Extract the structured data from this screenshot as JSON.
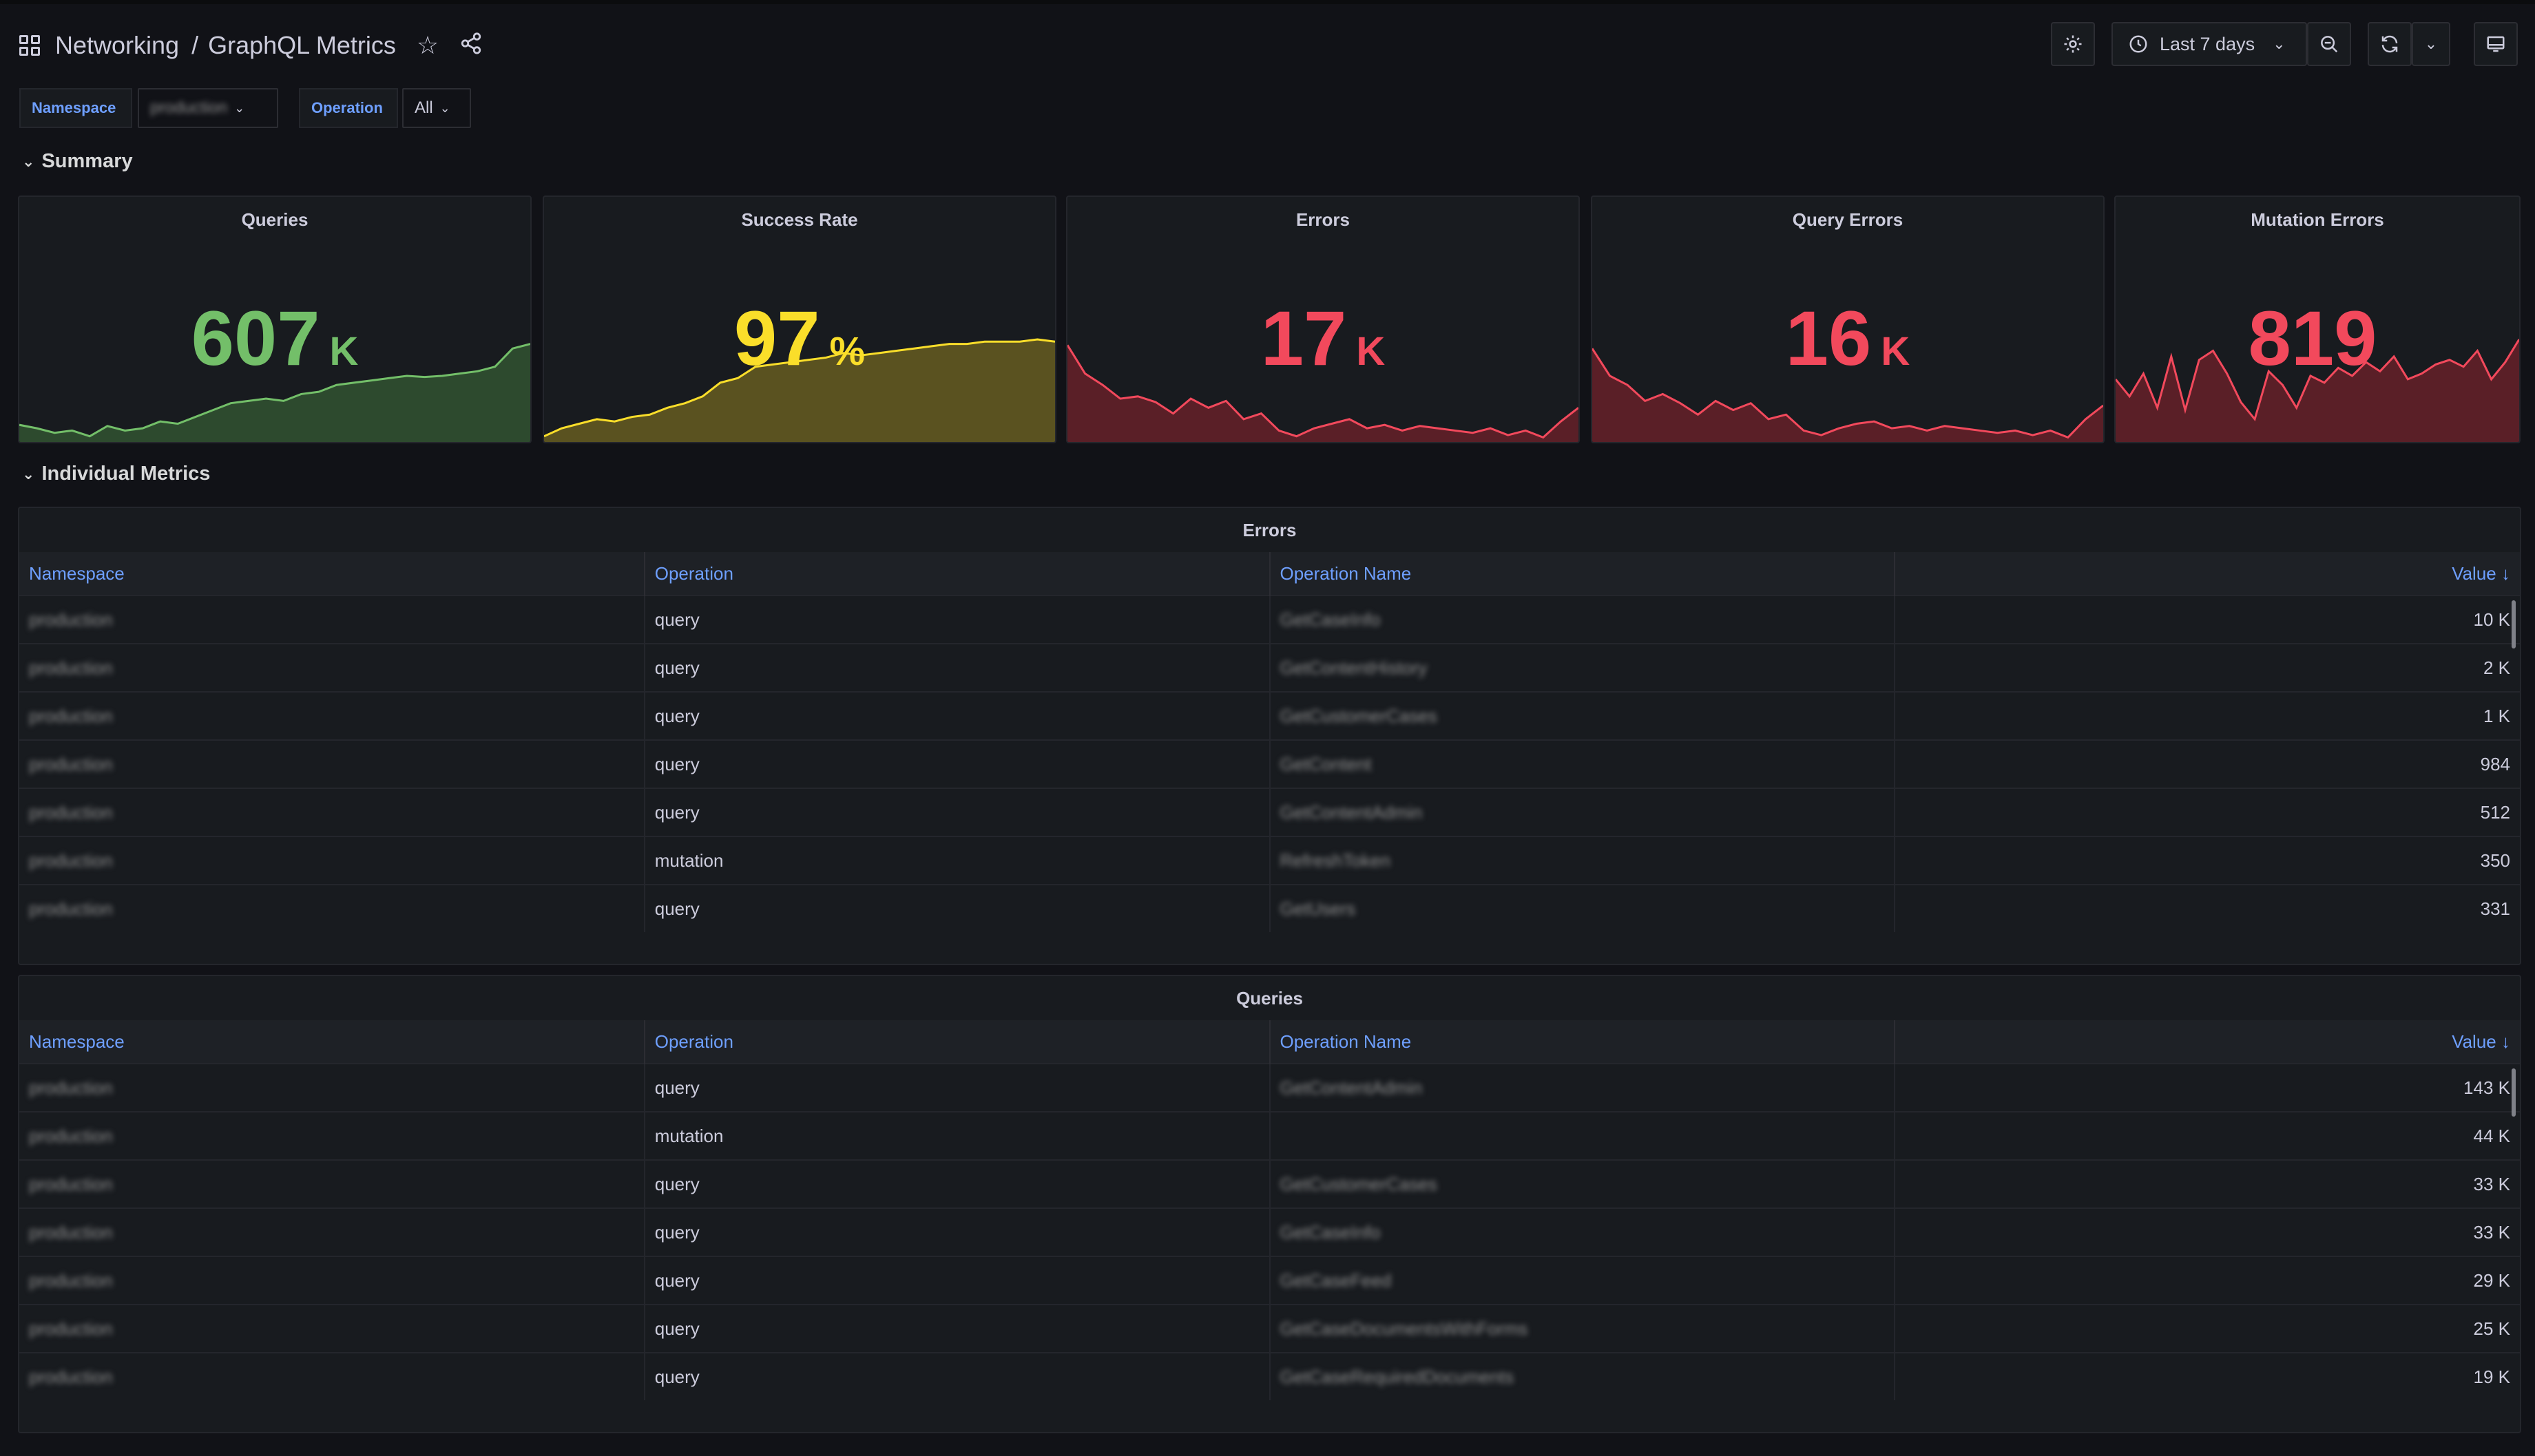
{
  "header": {
    "breadcrumb_root": "Networking",
    "breadcrumb_sep": "/",
    "title": "GraphQL Metrics"
  },
  "toolbar": {
    "time_range": "Last 7 days"
  },
  "variables": [
    {
      "label": "Namespace",
      "value": "production"
    },
    {
      "label": "Operation",
      "value": "All"
    }
  ],
  "rows": {
    "summary": "Summary",
    "individual": "Individual Metrics"
  },
  "stats": [
    {
      "title": "Queries",
      "value": "607",
      "unit": "K",
      "color": "#73bf69",
      "fill": "#2d4a2e",
      "trend": [
        0.15,
        0.12,
        0.08,
        0.1,
        0.05,
        0.14,
        0.1,
        0.12,
        0.18,
        0.16,
        0.22,
        0.28,
        0.34,
        0.36,
        0.38,
        0.36,
        0.42,
        0.44,
        0.5,
        0.52,
        0.54,
        0.56,
        0.58,
        0.57,
        0.58,
        0.6,
        0.62,
        0.66,
        0.82,
        0.86
      ]
    },
    {
      "title": "Success Rate",
      "value": "97",
      "unit": "%",
      "color": "#fade2a",
      "fill": "#5a5220",
      "trend": [
        0.05,
        0.12,
        0.16,
        0.2,
        0.18,
        0.22,
        0.24,
        0.3,
        0.34,
        0.4,
        0.52,
        0.56,
        0.66,
        0.68,
        0.7,
        0.72,
        0.74,
        0.78,
        0.76,
        0.78,
        0.8,
        0.82,
        0.84,
        0.86,
        0.86,
        0.88,
        0.88,
        0.88,
        0.9,
        0.88
      ]
    },
    {
      "title": "Errors",
      "value": "17",
      "unit": "K",
      "color": "#f2495c",
      "fill": "#5a1f27",
      "trend": [
        0.85,
        0.6,
        0.5,
        0.38,
        0.4,
        0.35,
        0.25,
        0.38,
        0.3,
        0.36,
        0.2,
        0.25,
        0.1,
        0.05,
        0.12,
        0.16,
        0.2,
        0.12,
        0.15,
        0.1,
        0.14,
        0.12,
        0.1,
        0.08,
        0.12,
        0.06,
        0.1,
        0.04,
        0.18,
        0.3
      ]
    },
    {
      "title": "Query Errors",
      "value": "16",
      "unit": "K",
      "color": "#f2495c",
      "fill": "#5a1f27",
      "trend": [
        0.82,
        0.58,
        0.5,
        0.36,
        0.42,
        0.34,
        0.24,
        0.36,
        0.28,
        0.34,
        0.2,
        0.24,
        0.1,
        0.06,
        0.12,
        0.16,
        0.18,
        0.12,
        0.14,
        0.1,
        0.14,
        0.12,
        0.1,
        0.08,
        0.1,
        0.06,
        0.1,
        0.04,
        0.2,
        0.32
      ]
    },
    {
      "title": "Mutation Errors",
      "value": "819",
      "unit": "",
      "color": "#f2495c",
      "fill": "#5a1f27",
      "trend": [
        0.55,
        0.4,
        0.6,
        0.3,
        0.75,
        0.28,
        0.72,
        0.8,
        0.6,
        0.35,
        0.2,
        0.62,
        0.5,
        0.3,
        0.58,
        0.52,
        0.65,
        0.58,
        0.7,
        0.62,
        0.75,
        0.55,
        0.6,
        0.68,
        0.72,
        0.66,
        0.8,
        0.55,
        0.7,
        0.9
      ]
    }
  ],
  "tables": [
    {
      "title": "Errors",
      "columns": [
        "Namespace",
        "Operation",
        "Operation Name",
        "Value"
      ],
      "rows": [
        [
          "production",
          "query",
          "GetCaseInfo",
          "10 K"
        ],
        [
          "production",
          "query",
          "GetContentHistory",
          "2 K"
        ],
        [
          "production",
          "query",
          "GetCustomerCases",
          "1 K"
        ],
        [
          "production",
          "query",
          "GetContent",
          "984"
        ],
        [
          "production",
          "query",
          "GetContentAdmin",
          "512"
        ],
        [
          "production",
          "mutation",
          "RefreshToken",
          "350"
        ],
        [
          "production",
          "query",
          "GetUsers",
          "331"
        ]
      ]
    },
    {
      "title": "Queries",
      "columns": [
        "Namespace",
        "Operation",
        "Operation Name",
        "Value"
      ],
      "rows": [
        [
          "production",
          "query",
          "GetContentAdmin",
          "143 K"
        ],
        [
          "production",
          "mutation",
          "",
          "44 K"
        ],
        [
          "production",
          "query",
          "GetCustomerCases",
          "33 K"
        ],
        [
          "production",
          "query",
          "GetCaseInfo",
          "33 K"
        ],
        [
          "production",
          "query",
          "GetCaseFeed",
          "29 K"
        ],
        [
          "production",
          "query",
          "GetCaseDocumentsWithForms",
          "25 K"
        ],
        [
          "production",
          "query",
          "GetCaseRequiredDocuments",
          "19 K"
        ]
      ]
    }
  ]
}
